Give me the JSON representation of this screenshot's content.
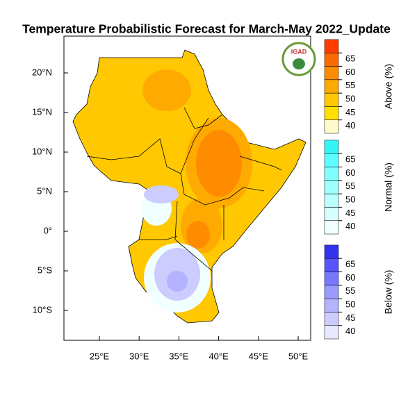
{
  "title": "Temperature Probabilistic Forecast for March-May 2022_Update",
  "logo_text": "IGAD",
  "map": {
    "xlim": [
      20.54,
      51.57
    ],
    "ylim": [
      -13.77,
      24.65
    ],
    "xticks": [
      {
        "value": 25,
        "label": "25°E"
      },
      {
        "value": 30,
        "label": "30°E"
      },
      {
        "value": 35,
        "label": "35°E"
      },
      {
        "value": 40,
        "label": "40°E"
      },
      {
        "value": 45,
        "label": "45°E"
      },
      {
        "value": 50,
        "label": "50°E"
      }
    ],
    "yticks": [
      {
        "value": -10,
        "label": "10°S"
      },
      {
        "value": -5,
        "label": "5°S"
      },
      {
        "value": 0,
        "label": "0°"
      },
      {
        "value": 5,
        "label": "5°N"
      },
      {
        "value": 10,
        "label": "10°N"
      },
      {
        "value": 15,
        "label": "15°N"
      },
      {
        "value": 20,
        "label": "20°N"
      }
    ]
  },
  "colorbars": [
    {
      "label": "Above (%)",
      "ticks": [
        40,
        45,
        50,
        55,
        60,
        65
      ],
      "colors": [
        "#fffacc",
        "#ffe000",
        "#ffc800",
        "#ffaa00",
        "#ff8c00",
        "#ff6a00",
        "#ff3d00"
      ]
    },
    {
      "label": "Normal (%)",
      "ticks": [
        40,
        45,
        50,
        55,
        60,
        65
      ],
      "colors": [
        "#f0ffff",
        "#d6ffff",
        "#bbffff",
        "#9fffff",
        "#80ffff",
        "#5cffff",
        "#33f5f5"
      ]
    },
    {
      "label": "Below (%)",
      "ticks": [
        40,
        45,
        50,
        55,
        60,
        65
      ],
      "colors": [
        "#e8e8ff",
        "#ccccff",
        "#b3b3ff",
        "#9999ff",
        "#7777ff",
        "#5555ff",
        "#3333ee"
      ]
    }
  ]
}
